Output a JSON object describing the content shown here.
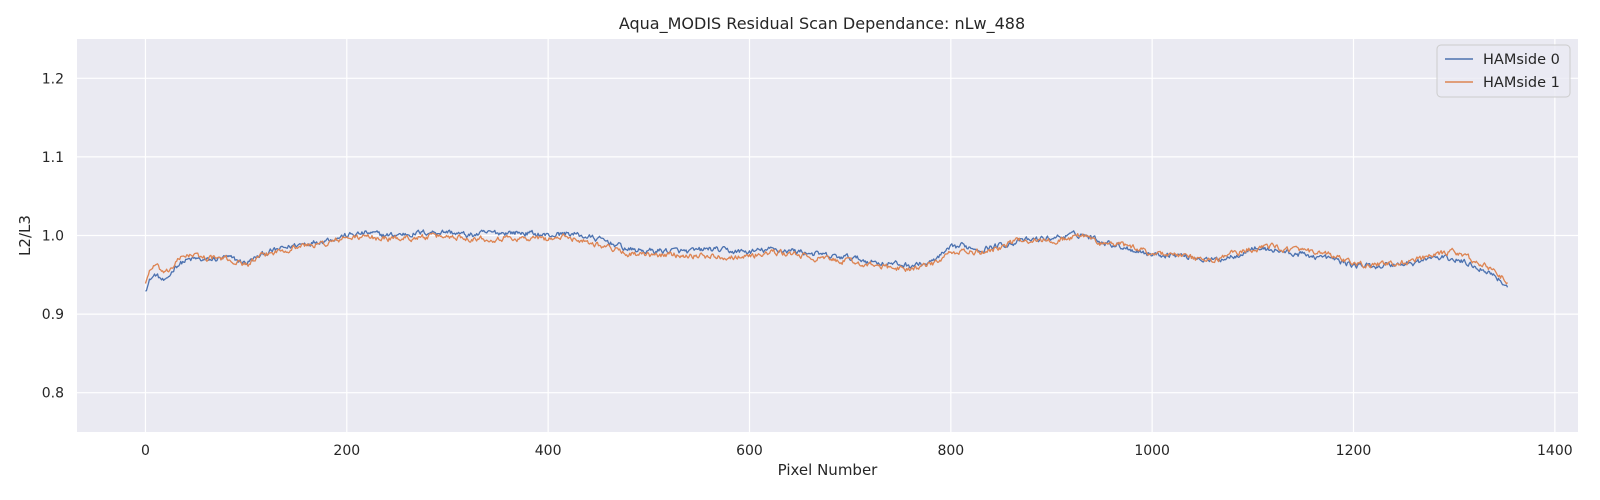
{
  "chart_data": {
    "type": "line",
    "title": "Aqua_MODIS Residual Scan Dependance: nLw_488",
    "xlabel": "Pixel Number",
    "ylabel": "L2/L3",
    "xlim": [
      -68,
      1423
    ],
    "ylim": [
      0.75,
      1.25
    ],
    "xticks": [
      0,
      200,
      400,
      600,
      800,
      1000,
      1200,
      1400
    ],
    "yticks": [
      0.8,
      0.9,
      1.0,
      1.1,
      1.2
    ],
    "grid": true,
    "background": "#EAEAF2",
    "legend_position": "top-right",
    "series": [
      {
        "name": "HAMside 0",
        "color": "#4C72B0",
        "x": [
          0,
          5,
          10,
          20,
          30,
          40,
          50,
          60,
          80,
          100,
          120,
          150,
          180,
          200,
          220,
          240,
          260,
          280,
          300,
          320,
          340,
          360,
          380,
          400,
          420,
          440,
          460,
          480,
          500,
          520,
          540,
          560,
          580,
          600,
          620,
          640,
          660,
          680,
          700,
          720,
          740,
          760,
          780,
          800,
          810,
          830,
          850,
          870,
          900,
          920,
          930,
          950,
          970,
          1000,
          1020,
          1040,
          1060,
          1080,
          1100,
          1120,
          1140,
          1160,
          1180,
          1200,
          1220,
          1240,
          1260,
          1280,
          1300,
          1320,
          1340,
          1353
        ],
        "y": [
          0.932,
          0.945,
          0.95,
          0.94,
          0.962,
          0.968,
          0.97,
          0.968,
          0.972,
          0.965,
          0.978,
          0.988,
          0.995,
          1.0,
          1.003,
          1.0,
          1.002,
          1.004,
          1.005,
          1.0,
          1.003,
          1.004,
          1.003,
          1.0,
          1.003,
          0.998,
          0.992,
          0.982,
          0.98,
          0.981,
          0.979,
          0.983,
          0.98,
          0.979,
          0.982,
          0.981,
          0.978,
          0.973,
          0.972,
          0.967,
          0.964,
          0.962,
          0.965,
          0.983,
          0.987,
          0.983,
          0.988,
          0.993,
          0.997,
          1.0,
          1.002,
          0.993,
          0.986,
          0.976,
          0.976,
          0.973,
          0.968,
          0.974,
          0.984,
          0.982,
          0.977,
          0.974,
          0.97,
          0.962,
          0.961,
          0.963,
          0.965,
          0.972,
          0.97,
          0.962,
          0.95,
          0.935
        ]
      },
      {
        "name": "HAMside 1",
        "color": "#DD8452",
        "x": [
          0,
          5,
          10,
          20,
          30,
          40,
          50,
          60,
          80,
          100,
          120,
          150,
          180,
          200,
          220,
          240,
          260,
          280,
          300,
          320,
          340,
          360,
          380,
          400,
          420,
          440,
          460,
          480,
          500,
          520,
          540,
          560,
          580,
          600,
          620,
          640,
          660,
          680,
          700,
          720,
          740,
          760,
          780,
          800,
          810,
          830,
          850,
          870,
          900,
          920,
          930,
          950,
          970,
          1000,
          1020,
          1040,
          1060,
          1080,
          1100,
          1120,
          1140,
          1160,
          1180,
          1200,
          1220,
          1240,
          1260,
          1280,
          1300,
          1320,
          1340,
          1353
        ],
        "y": [
          0.94,
          0.958,
          0.962,
          0.95,
          0.965,
          0.976,
          0.974,
          0.972,
          0.97,
          0.963,
          0.976,
          0.986,
          0.99,
          0.997,
          0.998,
          0.996,
          0.997,
          0.998,
          0.999,
          0.997,
          0.996,
          0.997,
          0.996,
          0.996,
          0.998,
          0.992,
          0.985,
          0.977,
          0.974,
          0.976,
          0.975,
          0.974,
          0.973,
          0.974,
          0.978,
          0.977,
          0.972,
          0.969,
          0.967,
          0.962,
          0.959,
          0.958,
          0.962,
          0.977,
          0.98,
          0.978,
          0.986,
          0.995,
          0.993,
          0.997,
          1.001,
          0.99,
          0.988,
          0.978,
          0.976,
          0.971,
          0.967,
          0.978,
          0.983,
          0.986,
          0.982,
          0.978,
          0.974,
          0.963,
          0.963,
          0.964,
          0.968,
          0.974,
          0.98,
          0.968,
          0.955,
          0.942
        ]
      }
    ]
  }
}
